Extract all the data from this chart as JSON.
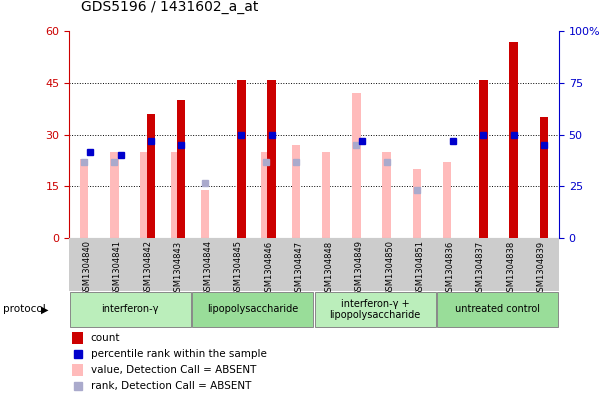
{
  "title": "GDS5196 / 1431602_a_at",
  "samples": [
    "GSM1304840",
    "GSM1304841",
    "GSM1304842",
    "GSM1304843",
    "GSM1304844",
    "GSM1304845",
    "GSM1304846",
    "GSM1304847",
    "GSM1304848",
    "GSM1304849",
    "GSM1304850",
    "GSM1304851",
    "GSM1304836",
    "GSM1304837",
    "GSM1304838",
    "GSM1304839"
  ],
  "red_bar": [
    0,
    0,
    36,
    40,
    0,
    46,
    46,
    0,
    0,
    0,
    0,
    0,
    0,
    46,
    57,
    35
  ],
  "blue_dot": [
    25,
    24,
    28,
    27,
    0,
    30,
    30,
    0,
    0,
    28,
    0,
    0,
    28,
    30,
    30,
    27
  ],
  "pink_bar": [
    23,
    25,
    25,
    25,
    14,
    0,
    25,
    27,
    25,
    42,
    25,
    20,
    22,
    0,
    0,
    0
  ],
  "lightblue_dot": [
    22,
    22,
    0,
    0,
    16,
    0,
    22,
    22,
    0,
    27,
    22,
    14,
    0,
    0,
    0,
    0
  ],
  "protocols": [
    {
      "label": "interferon-γ",
      "start": 0,
      "end": 3,
      "color": "#bbeebb"
    },
    {
      "label": "lipopolysaccharide",
      "start": 4,
      "end": 7,
      "color": "#99dd99"
    },
    {
      "label": "interferon-γ +\nlipopolysaccharide",
      "start": 8,
      "end": 11,
      "color": "#bbeebb"
    },
    {
      "label": "untreated control",
      "start": 12,
      "end": 15,
      "color": "#99dd99"
    }
  ],
  "ylim_left": [
    0,
    60
  ],
  "yticks_left": [
    0,
    15,
    30,
    45,
    60
  ],
  "yticks_right": [
    0,
    25,
    50,
    75,
    100
  ],
  "left_axis_color": "#cc0000",
  "right_axis_color": "#0000cc",
  "bar_color_red": "#cc0000",
  "bar_color_pink": "#ffbbbb",
  "dot_color_blue": "#0000cc",
  "dot_color_lightblue": "#aaaacc",
  "xtick_bg": "#cccccc"
}
